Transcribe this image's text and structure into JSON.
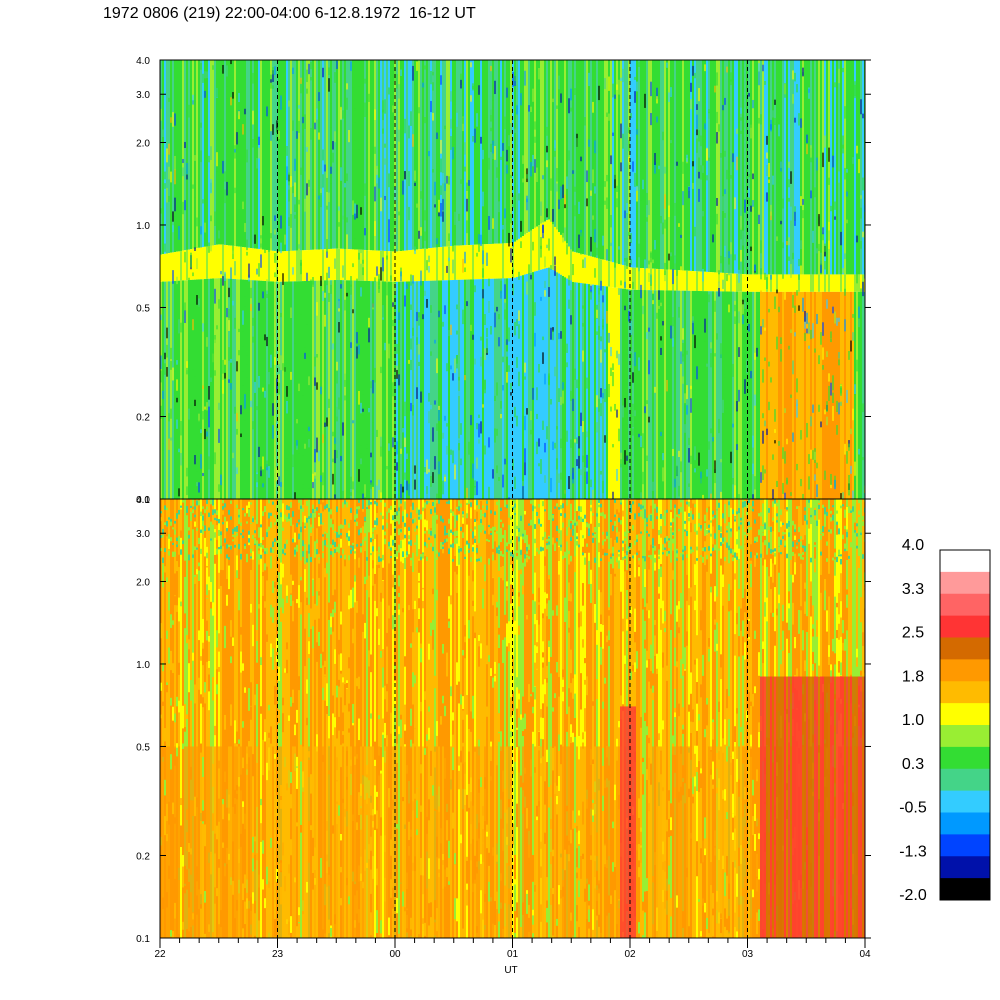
{
  "title": "1972 0806 (219) 22:00-04:00 6-12.8.1972  16-12 UT",
  "chart_data": {
    "type": "heatmap",
    "xlabel": "UT",
    "x_ticks": [
      "22",
      "23",
      "00",
      "01",
      "02",
      "03",
      "04"
    ],
    "x_range": [
      22,
      28
    ],
    "y_scale": "log",
    "panels": [
      {
        "name": "upper",
        "ylim": [
          0.1,
          4.0
        ],
        "y_ticks": [
          "0.1",
          "0.2",
          "0.5",
          "1.0",
          "2.0",
          "3.0",
          "4.0"
        ],
        "band": [
          {
            "ut": 22.0,
            "low": 0.62,
            "high": 0.78
          },
          {
            "ut": 22.5,
            "low": 0.64,
            "high": 0.85
          },
          {
            "ut": 23.0,
            "low": 0.62,
            "high": 0.8
          },
          {
            "ut": 23.5,
            "low": 0.63,
            "high": 0.82
          },
          {
            "ut": 24.0,
            "low": 0.62,
            "high": 0.8
          },
          {
            "ut": 24.5,
            "low": 0.63,
            "high": 0.84
          },
          {
            "ut": 25.0,
            "low": 0.64,
            "high": 0.86
          },
          {
            "ut": 25.3,
            "low": 0.7,
            "high": 1.05
          },
          {
            "ut": 25.5,
            "low": 0.62,
            "high": 0.8
          },
          {
            "ut": 26.0,
            "low": 0.58,
            "high": 0.7
          },
          {
            "ut": 27.0,
            "low": 0.57,
            "high": 0.66
          }
        ]
      },
      {
        "name": "lower",
        "ylim": [
          0.1,
          4.0
        ],
        "y_ticks": [
          "0.1",
          "0.2",
          "0.5",
          "1.0",
          "2.0",
          "3.0",
          "4.0"
        ]
      }
    ],
    "colorbar": {
      "tick_labels": [
        "4.0",
        "3.3",
        "2.5",
        "1.8",
        "1.0",
        "0.3",
        "-0.5",
        "-1.3",
        "-2.0"
      ],
      "colors": [
        "#ffffff",
        "#ff9a9a",
        "#ff6464",
        "#ff3434",
        "#d46a00",
        "#ff9900",
        "#ffbb00",
        "#ffff00",
        "#99ee33",
        "#33dd33",
        "#44d488",
        "#33ccff",
        "#0099ff",
        "#0044ff",
        "#0011aa",
        "#000000"
      ]
    }
  }
}
